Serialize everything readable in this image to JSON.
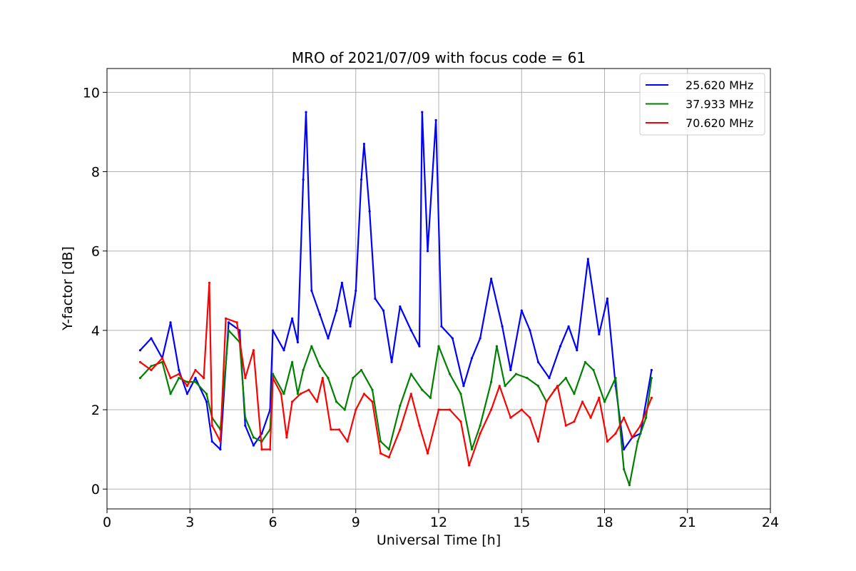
{
  "chart_data": {
    "type": "line",
    "title": "MRO of 2021/07/09 with focus code = 61",
    "xlabel": "Universal Time [h]",
    "ylabel": "Y-factor [dB]",
    "xlim": [
      0,
      24
    ],
    "ylim": [
      -0.5,
      10.6
    ],
    "xticks": [
      0,
      3,
      6,
      9,
      12,
      15,
      18,
      21,
      24
    ],
    "yticks": [
      0,
      2,
      4,
      6,
      8,
      10
    ],
    "grid": true,
    "legend_position": "top-right",
    "series": [
      {
        "name": "25.620 MHz",
        "color": "#0000ff",
        "points": [
          [
            1.2,
            3.5
          ],
          [
            1.6,
            3.8
          ],
          [
            2.0,
            3.3
          ],
          [
            2.3,
            4.2
          ],
          [
            2.6,
            3.0
          ],
          [
            2.9,
            2.4
          ],
          [
            3.2,
            2.8
          ],
          [
            3.6,
            2.2
          ],
          [
            3.8,
            1.2
          ],
          [
            4.1,
            1.0
          ],
          [
            4.4,
            4.2
          ],
          [
            4.8,
            4.0
          ],
          [
            5.0,
            1.6
          ],
          [
            5.3,
            1.1
          ],
          [
            5.6,
            1.4
          ],
          [
            5.9,
            2.0
          ],
          [
            6.0,
            4.0
          ],
          [
            6.4,
            3.5
          ],
          [
            6.7,
            4.3
          ],
          [
            6.9,
            3.7
          ],
          [
            7.1,
            7.8
          ],
          [
            7.2,
            9.5
          ],
          [
            7.4,
            5.0
          ],
          [
            7.7,
            4.4
          ],
          [
            8.0,
            3.8
          ],
          [
            8.3,
            4.5
          ],
          [
            8.5,
            5.2
          ],
          [
            8.8,
            4.1
          ],
          [
            9.0,
            5.0
          ],
          [
            9.2,
            7.8
          ],
          [
            9.3,
            8.7
          ],
          [
            9.5,
            7.0
          ],
          [
            9.7,
            4.8
          ],
          [
            10.0,
            4.5
          ],
          [
            10.3,
            3.2
          ],
          [
            10.6,
            4.6
          ],
          [
            11.0,
            4.0
          ],
          [
            11.3,
            3.6
          ],
          [
            11.4,
            9.5
          ],
          [
            11.6,
            6.0
          ],
          [
            11.9,
            9.3
          ],
          [
            12.1,
            4.1
          ],
          [
            12.5,
            3.8
          ],
          [
            12.9,
            2.6
          ],
          [
            13.2,
            3.3
          ],
          [
            13.5,
            3.8
          ],
          [
            13.9,
            5.3
          ],
          [
            14.3,
            4.1
          ],
          [
            14.6,
            3.0
          ],
          [
            15.0,
            4.5
          ],
          [
            15.3,
            4.0
          ],
          [
            15.6,
            3.2
          ],
          [
            16.0,
            2.8
          ],
          [
            16.4,
            3.6
          ],
          [
            16.7,
            4.1
          ],
          [
            17.0,
            3.5
          ],
          [
            17.4,
            5.8
          ],
          [
            17.8,
            3.9
          ],
          [
            18.1,
            4.8
          ],
          [
            18.4,
            2.6
          ],
          [
            18.7,
            1.0
          ],
          [
            19.0,
            1.3
          ],
          [
            19.3,
            1.4
          ],
          [
            19.7,
            3.0
          ]
        ]
      },
      {
        "name": "37.933 MHz",
        "color": "#008000",
        "points": [
          [
            1.2,
            2.8
          ],
          [
            1.6,
            3.1
          ],
          [
            2.0,
            3.2
          ],
          [
            2.3,
            2.4
          ],
          [
            2.6,
            2.8
          ],
          [
            2.9,
            2.7
          ],
          [
            3.2,
            2.7
          ],
          [
            3.6,
            2.4
          ],
          [
            3.8,
            1.8
          ],
          [
            4.1,
            1.5
          ],
          [
            4.4,
            4.0
          ],
          [
            4.8,
            3.7
          ],
          [
            5.0,
            1.8
          ],
          [
            5.3,
            1.3
          ],
          [
            5.6,
            1.2
          ],
          [
            5.9,
            1.5
          ],
          [
            6.0,
            2.9
          ],
          [
            6.4,
            2.4
          ],
          [
            6.7,
            3.2
          ],
          [
            6.9,
            2.4
          ],
          [
            7.1,
            3.0
          ],
          [
            7.4,
            3.6
          ],
          [
            7.7,
            3.1
          ],
          [
            8.0,
            2.8
          ],
          [
            8.3,
            2.2
          ],
          [
            8.6,
            2.0
          ],
          [
            8.9,
            2.8
          ],
          [
            9.2,
            3.0
          ],
          [
            9.6,
            2.5
          ],
          [
            9.9,
            1.2
          ],
          [
            10.2,
            1.0
          ],
          [
            10.6,
            2.1
          ],
          [
            11.0,
            2.9
          ],
          [
            11.4,
            2.5
          ],
          [
            11.7,
            2.3
          ],
          [
            12.0,
            3.6
          ],
          [
            12.4,
            2.9
          ],
          [
            12.8,
            2.4
          ],
          [
            13.2,
            1.0
          ],
          [
            13.5,
            1.6
          ],
          [
            13.9,
            2.7
          ],
          [
            14.1,
            3.6
          ],
          [
            14.4,
            2.6
          ],
          [
            14.8,
            2.9
          ],
          [
            15.2,
            2.8
          ],
          [
            15.6,
            2.6
          ],
          [
            15.9,
            2.2
          ],
          [
            16.2,
            2.5
          ],
          [
            16.6,
            2.8
          ],
          [
            16.9,
            2.4
          ],
          [
            17.3,
            3.2
          ],
          [
            17.6,
            3.0
          ],
          [
            18.0,
            2.2
          ],
          [
            18.4,
            2.8
          ],
          [
            18.7,
            0.5
          ],
          [
            18.9,
            0.1
          ],
          [
            19.2,
            1.2
          ],
          [
            19.5,
            1.8
          ],
          [
            19.7,
            2.8
          ]
        ]
      },
      {
        "name": "70.620 MHz",
        "color": "#ff0000",
        "points": [
          [
            1.2,
            3.2
          ],
          [
            1.6,
            3.0
          ],
          [
            2.0,
            3.3
          ],
          [
            2.3,
            2.8
          ],
          [
            2.6,
            2.9
          ],
          [
            2.9,
            2.6
          ],
          [
            3.2,
            3.0
          ],
          [
            3.5,
            2.8
          ],
          [
            3.7,
            5.2
          ],
          [
            3.8,
            1.6
          ],
          [
            4.1,
            1.2
          ],
          [
            4.3,
            4.3
          ],
          [
            4.7,
            4.2
          ],
          [
            5.0,
            2.8
          ],
          [
            5.3,
            3.5
          ],
          [
            5.6,
            1.0
          ],
          [
            5.9,
            1.0
          ],
          [
            6.0,
            2.8
          ],
          [
            6.3,
            2.4
          ],
          [
            6.5,
            1.3
          ],
          [
            6.7,
            2.2
          ],
          [
            7.0,
            2.4
          ],
          [
            7.3,
            2.5
          ],
          [
            7.6,
            2.2
          ],
          [
            7.8,
            2.8
          ],
          [
            8.1,
            1.5
          ],
          [
            8.4,
            1.5
          ],
          [
            8.7,
            1.2
          ],
          [
            9.0,
            2.0
          ],
          [
            9.3,
            2.4
          ],
          [
            9.6,
            2.2
          ],
          [
            9.9,
            0.9
          ],
          [
            10.2,
            0.8
          ],
          [
            10.6,
            1.5
          ],
          [
            11.0,
            2.4
          ],
          [
            11.3,
            1.6
          ],
          [
            11.6,
            0.9
          ],
          [
            12.0,
            2.0
          ],
          [
            12.4,
            2.0
          ],
          [
            12.8,
            1.7
          ],
          [
            13.1,
            0.6
          ],
          [
            13.5,
            1.4
          ],
          [
            13.9,
            2.0
          ],
          [
            14.2,
            2.6
          ],
          [
            14.6,
            1.8
          ],
          [
            15.0,
            2.0
          ],
          [
            15.3,
            1.8
          ],
          [
            15.6,
            1.2
          ],
          [
            15.9,
            2.2
          ],
          [
            16.3,
            2.6
          ],
          [
            16.6,
            1.6
          ],
          [
            16.9,
            1.7
          ],
          [
            17.2,
            2.2
          ],
          [
            17.5,
            1.8
          ],
          [
            17.8,
            2.3
          ],
          [
            18.1,
            1.2
          ],
          [
            18.4,
            1.4
          ],
          [
            18.7,
            1.8
          ],
          [
            19.0,
            1.3
          ],
          [
            19.3,
            1.6
          ],
          [
            19.7,
            2.3
          ]
        ]
      }
    ]
  }
}
